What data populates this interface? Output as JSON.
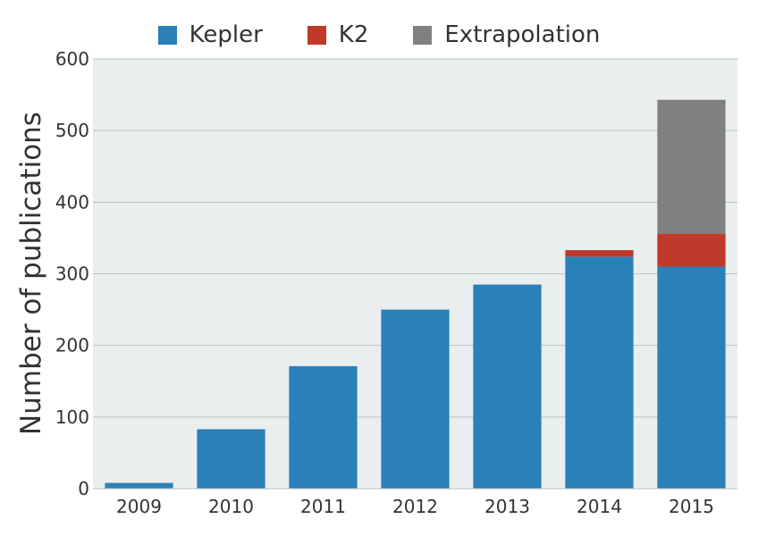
{
  "chart_data": {
    "type": "bar",
    "stacked": true,
    "categories": [
      "2009",
      "2010",
      "2011",
      "2012",
      "2013",
      "2014",
      "2015"
    ],
    "series": [
      {
        "name": "Kepler",
        "values": [
          8,
          83,
          171,
          250,
          285,
          324,
          310
        ],
        "color": "#2a80b9"
      },
      {
        "name": "K2",
        "values": [
          0,
          0,
          0,
          0,
          0,
          9,
          46
        ],
        "color": "#c0392b"
      },
      {
        "name": "Extrapolation",
        "values": [
          0,
          0,
          0,
          0,
          0,
          0,
          187
        ],
        "color": "#808080"
      }
    ],
    "title": "",
    "xlabel": "",
    "ylabel": "Number of publications",
    "ylim": [
      0,
      600
    ],
    "yticks": [
      "0",
      "100",
      "200",
      "300",
      "400",
      "500",
      "600"
    ],
    "grid": true,
    "legend_position": "top-center",
    "background": "#eaeeef"
  }
}
